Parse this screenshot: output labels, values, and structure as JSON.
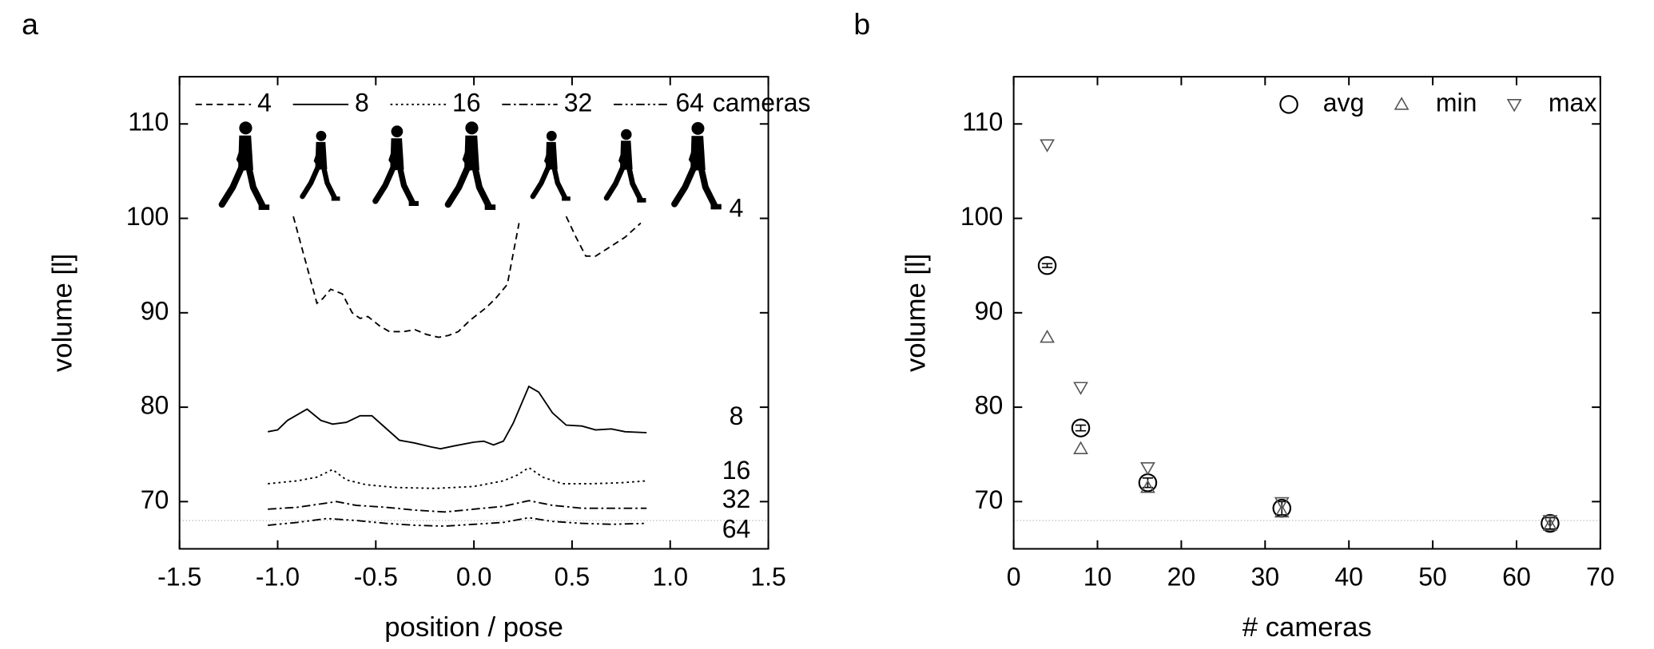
{
  "chart_data": [
    {
      "type": "line",
      "panel_label": "a",
      "xlabel": "position / pose",
      "ylabel": "volume [l]",
      "xlim": [
        -1.5,
        1.5
      ],
      "ylim": [
        65,
        115
      ],
      "xticks": [
        -1.5,
        {
          "value": -1,
          "label": "-1.0"
        },
        -0.5,
        {
          "value": 0,
          "label": "0.0"
        },
        0.5,
        {
          "value": 1,
          "label": "1.0"
        },
        1.5
      ],
      "yticks": [
        70,
        80,
        90,
        100,
        110
      ],
      "reference_line": 68,
      "reference_color": "#bbbbbb",
      "legend_suffix": "cameras",
      "series": [
        {
          "name": "4",
          "color": "#000000",
          "dash": "6,4",
          "x": [
            -0.92,
            -0.8,
            -0.77,
            -0.73,
            -0.67,
            -0.62,
            -0.58,
            -0.54,
            -0.48,
            -0.43,
            -0.36,
            -0.3,
            -0.24,
            -0.18,
            -0.13,
            -0.08,
            -0.02,
            0.06,
            0.11,
            0.17,
            0.23,
            0.35,
            0.47,
            0.52,
            0.57,
            0.62,
            0.68,
            0.77,
            0.85
          ],
          "values": [
            100.2,
            91,
            91.5,
            92.5,
            92,
            90,
            89.4,
            89.6,
            88.6,
            88,
            88,
            88.2,
            87.7,
            87.4,
            87.6,
            88,
            89.2,
            90.5,
            91.5,
            93,
            99.5,
            null,
            100.2,
            98,
            96,
            96,
            96.8,
            98,
            99.5
          ]
        },
        {
          "name": "8",
          "color": "#000000",
          "dash": "none",
          "x": [
            -1.05,
            -1.0,
            -0.95,
            -0.85,
            -0.78,
            -0.72,
            -0.65,
            -0.58,
            -0.52,
            -0.45,
            -0.38,
            -0.3,
            -0.22,
            -0.17,
            -0.1,
            0,
            0.05,
            0.1,
            0.15,
            0.2,
            0.28,
            0.33,
            0.4,
            0.47,
            0.55,
            0.62,
            0.7,
            0.77,
            0.88
          ],
          "values": [
            77.4,
            77.6,
            78.6,
            79.8,
            78.6,
            78.2,
            78.4,
            79.1,
            79.1,
            77.8,
            76.5,
            76.2,
            75.8,
            75.6,
            75.9,
            76.3,
            76.4,
            76.0,
            76.4,
            78.3,
            82.2,
            81.6,
            79.4,
            78.1,
            78.0,
            77.6,
            77.7,
            77.4,
            77.3
          ]
        },
        {
          "name": "16",
          "color": "#000000",
          "dash": "2,3",
          "x": [
            -1.05,
            -0.9,
            -0.8,
            -0.72,
            -0.65,
            -0.55,
            -0.4,
            -0.2,
            0,
            0.15,
            0.22,
            0.28,
            0.35,
            0.45,
            0.6,
            0.75,
            0.88
          ],
          "values": [
            71.9,
            72.2,
            72.6,
            73.4,
            72.3,
            71.8,
            71.5,
            71.4,
            71.6,
            72.2,
            72.8,
            73.6,
            72.6,
            71.9,
            71.9,
            72.0,
            72.2
          ]
        },
        {
          "name": "32",
          "color": "#000000",
          "dash": "8,3,2,3",
          "x": [
            -1.05,
            -0.9,
            -0.8,
            -0.7,
            -0.6,
            -0.45,
            -0.3,
            -0.15,
            0,
            0.15,
            0.28,
            0.4,
            0.55,
            0.7,
            0.88
          ],
          "values": [
            69.2,
            69.4,
            69.7,
            70.0,
            69.6,
            69.4,
            69.1,
            68.9,
            69.2,
            69.5,
            70.1,
            69.6,
            69.3,
            69.3,
            69.3
          ]
        },
        {
          "name": "64",
          "color": "#000000",
          "dash": "8,3,2,3,2,3",
          "x": [
            -1.05,
            -0.9,
            -0.75,
            -0.6,
            -0.45,
            -0.3,
            -0.15,
            0,
            0.15,
            0.28,
            0.4,
            0.55,
            0.7,
            0.88
          ],
          "values": [
            67.5,
            67.8,
            68.2,
            68.0,
            67.7,
            67.5,
            67.4,
            67.6,
            67.8,
            68.3,
            67.9,
            67.7,
            67.6,
            67.7
          ]
        }
      ]
    },
    {
      "type": "scatter",
      "panel_label": "b",
      "xlabel": "# cameras",
      "ylabel": "volume [l]",
      "xlim": [
        0,
        70
      ],
      "ylim": [
        65,
        115
      ],
      "xticks": [
        0,
        10,
        20,
        30,
        40,
        50,
        60,
        70
      ],
      "yticks": [
        70,
        80,
        90,
        100,
        110
      ],
      "reference_line": 68,
      "reference_color": "#bbbbbb",
      "x": [
        4,
        8,
        16,
        32,
        64
      ],
      "series": [
        {
          "name": "avg",
          "color": "#000000",
          "marker": "circle",
          "values": [
            95,
            77.8,
            72,
            69.3,
            67.7
          ],
          "errors": [
            0.2,
            0.3,
            0.5,
            0.7,
            0.6
          ]
        },
        {
          "name": "min",
          "color": "#555555",
          "marker": "triangle-up",
          "values": [
            87.4,
            75.6,
            71.5,
            68.9,
            67.5
          ]
        },
        {
          "name": "max",
          "color": "#555555",
          "marker": "triangle-down",
          "values": [
            107.8,
            82.1,
            73.6,
            69.9,
            68.0
          ]
        }
      ]
    }
  ]
}
